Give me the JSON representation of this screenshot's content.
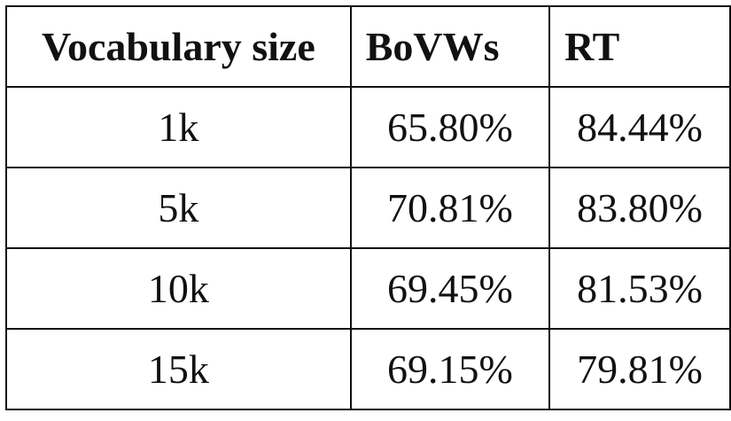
{
  "chart_data": {
    "type": "table",
    "columns": [
      "Vocabulary size",
      "BoVWs",
      "RT"
    ],
    "rows": [
      [
        "1k",
        "65.80%",
        "84.44%"
      ],
      [
        "5k",
        "70.81%",
        "83.80%"
      ],
      [
        "10k",
        "69.45%",
        "81.53%"
      ],
      [
        "15k",
        "69.15%",
        "79.81%"
      ]
    ],
    "series": [
      {
        "name": "BoVWs",
        "values": [
          65.8,
          70.81,
          69.45,
          69.15
        ]
      },
      {
        "name": "RT",
        "values": [
          84.44,
          83.8,
          81.53,
          79.81
        ]
      }
    ],
    "categories": [
      "1k",
      "5k",
      "10k",
      "15k"
    ]
  }
}
